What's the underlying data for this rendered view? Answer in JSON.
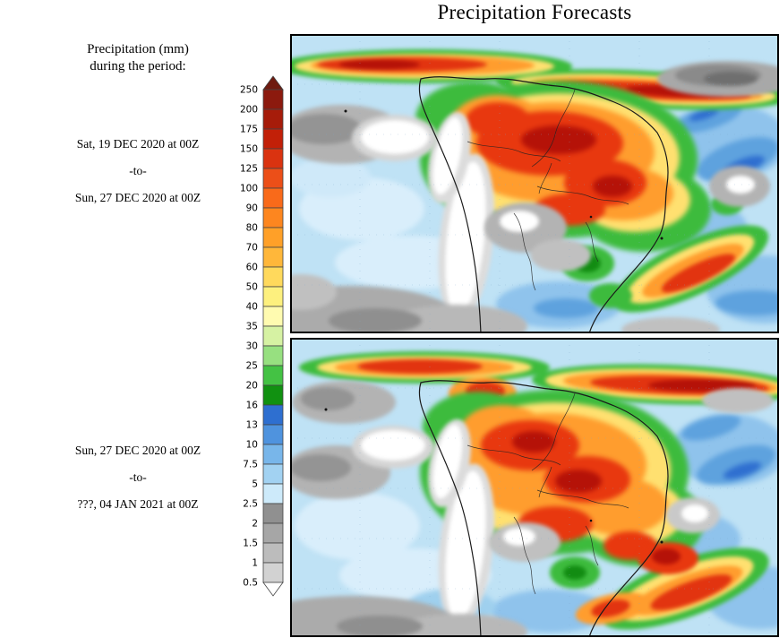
{
  "title": "Precipitation Forecasts",
  "sidebar": {
    "heading_line1": "Precipitation (mm)",
    "heading_line2": "during the period:",
    "periods": [
      {
        "start": "Sat, 19 DEC 2020 at 00Z",
        "separator": "-to-",
        "end": "Sun, 27 DEC 2020 at 00Z"
      },
      {
        "start": "Sun, 27 DEC 2020 at 00Z",
        "separator": "-to-",
        "end": "???, 04 JAN 2021 at 00Z"
      }
    ]
  },
  "colorbar": {
    "boundary_labels": [
      "250",
      "200",
      "175",
      "150",
      "125",
      "100",
      "90",
      "80",
      "70",
      "60",
      "50",
      "40",
      "35",
      "30",
      "25",
      "20",
      "16",
      "13",
      "10",
      "7.5",
      "5",
      "2.5",
      "2",
      "1.5",
      "1",
      "0.5"
    ],
    "above_max_color": "#6f1b10",
    "below_min_color": "#ffffff",
    "cells": [
      {
        "range": "200-250",
        "color": "#8c1a0e"
      },
      {
        "range": "175-200",
        "color": "#a61c0a"
      },
      {
        "range": "150-175",
        "color": "#c22008"
      },
      {
        "range": "125-150",
        "color": "#da3310"
      },
      {
        "range": "100-125",
        "color": "#ec4f18"
      },
      {
        "range": "90-100",
        "color": "#f96a1a"
      },
      {
        "range": "80-90",
        "color": "#fd861f"
      },
      {
        "range": "70-80",
        "color": "#ffa028"
      },
      {
        "range": "60-70",
        "color": "#ffb73a"
      },
      {
        "range": "50-60",
        "color": "#ffd95c"
      },
      {
        "range": "40-50",
        "color": "#fdf07e"
      },
      {
        "range": "35-40",
        "color": "#fffbb0"
      },
      {
        "range": "30-35",
        "color": "#d6f2a3"
      },
      {
        "range": "25-30",
        "color": "#97e080"
      },
      {
        "range": "20-25",
        "color": "#44c244"
      },
      {
        "range": "16-20",
        "color": "#119111"
      },
      {
        "range": "13-16",
        "color": "#2e6fd0"
      },
      {
        "range": "10-13",
        "color": "#4f93de"
      },
      {
        "range": "7.5-10",
        "color": "#78b6ea"
      },
      {
        "range": "5-7.5",
        "color": "#a2d2f2"
      },
      {
        "range": "2.5-5",
        "color": "#cdeafa"
      },
      {
        "range": "2-2.5",
        "color": "#909090"
      },
      {
        "range": "1.5-2",
        "color": "#a6a6a6"
      },
      {
        "range": "1-1.5",
        "color": "#bcbcbc"
      },
      {
        "range": "0.5-1",
        "color": "#d2d2d2"
      }
    ]
  }
}
